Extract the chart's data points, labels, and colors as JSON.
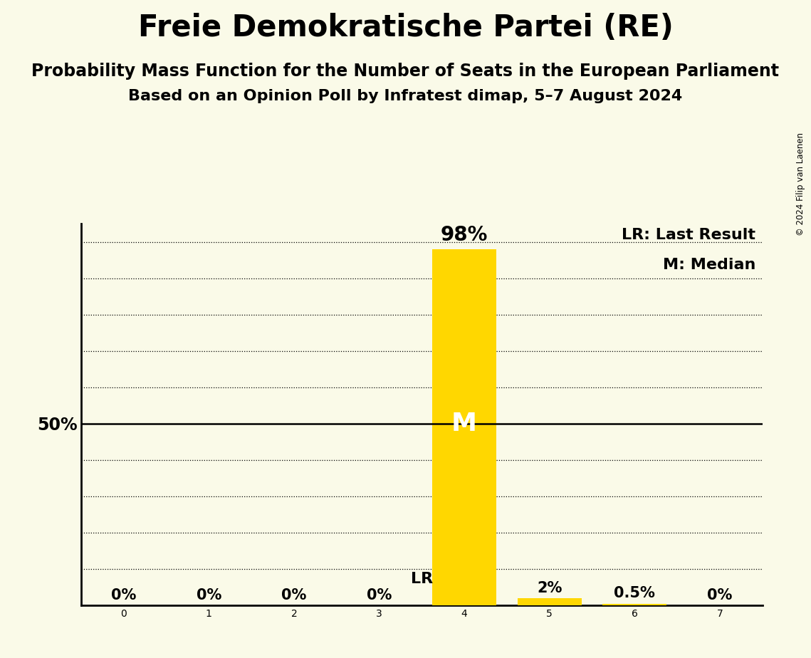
{
  "title": "Freie Demokratische Partei (RE)",
  "subtitle1": "Probability Mass Function for the Number of Seats in the European Parliament",
  "subtitle2": "Based on an Opinion Poll by Infratest dimap, 5–7 August 2024",
  "copyright": "© 2024 Filip van Laenen",
  "x_values": [
    0,
    1,
    2,
    3,
    4,
    5,
    6,
    7
  ],
  "y_values": [
    0.0,
    0.0,
    0.0,
    0.0,
    0.98,
    0.02,
    0.005,
    0.0
  ],
  "bar_labels": [
    "0%",
    "0%",
    "0%",
    "0%",
    "98%",
    "2%",
    "0.5%",
    "0%"
  ],
  "bar_colors": [
    "#FFD700",
    "#FFD700",
    "#FFD700",
    "#FFD700",
    "#FFD700",
    "#FFD700",
    "#FFD700",
    "#FFD700"
  ],
  "median_seat": 4,
  "lr_seat": 4,
  "lr_label": "LR",
  "median_label": "M",
  "legend_lr": "LR: Last Result",
  "legend_m": "M: Median",
  "ylim": [
    0,
    1.05
  ],
  "ylabel_50": "50%",
  "background_color": "#FAFAE8",
  "grid_color": "#000000",
  "bar_width": 0.75,
  "title_fontsize": 30,
  "subtitle_fontsize": 17,
  "label_fontsize": 15,
  "tick_fontsize": 17,
  "legend_fontsize": 16,
  "annotation_fontsize": 20,
  "median_fontsize": 26,
  "lr_text_fontsize": 16
}
